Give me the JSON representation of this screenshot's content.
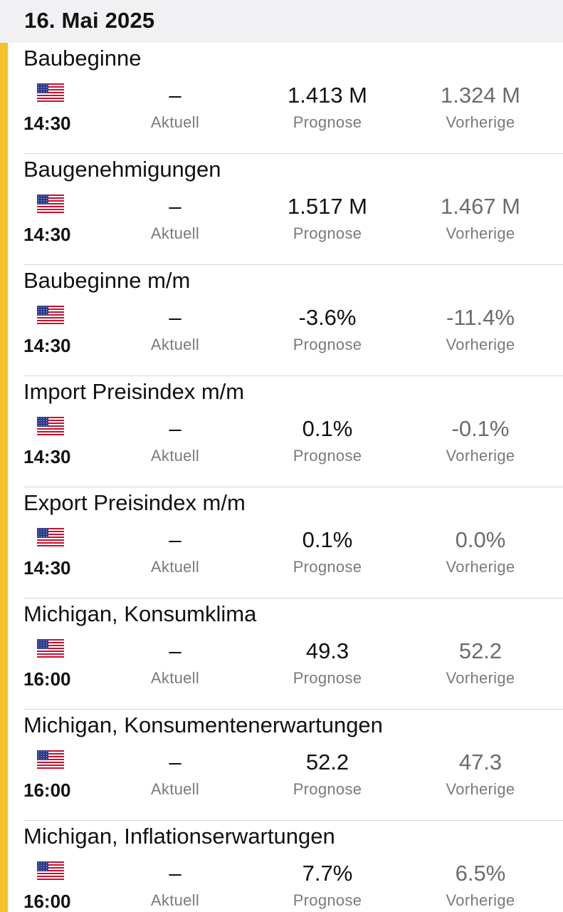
{
  "header": {
    "date": "16. Mai 2025"
  },
  "labels": {
    "actual": "Aktuell",
    "forecast": "Prognose",
    "previous": "Vorherige"
  },
  "colors": {
    "accent": "#f4c12a",
    "header_bg": "#f1f1f4",
    "label_gray": "#7a7a7e"
  },
  "events": [
    {
      "title": "Baubeginne",
      "country_flag": "us-flag-icon",
      "time": "14:30",
      "actual": "–",
      "forecast": "1.413 M",
      "previous": "1.324 M"
    },
    {
      "title": "Baugenehmigungen",
      "country_flag": "us-flag-icon",
      "time": "14:30",
      "actual": "–",
      "forecast": "1.517 M",
      "previous": "1.467 M"
    },
    {
      "title": "Baubeginne m/m",
      "country_flag": "us-flag-icon",
      "time": "14:30",
      "actual": "–",
      "forecast": "-3.6%",
      "previous": "-11.4%"
    },
    {
      "title": "Import Preisindex m/m",
      "country_flag": "us-flag-icon",
      "time": "14:30",
      "actual": "–",
      "forecast": "0.1%",
      "previous": "-0.1%"
    },
    {
      "title": "Export Preisindex m/m",
      "country_flag": "us-flag-icon",
      "time": "14:30",
      "actual": "–",
      "forecast": "0.1%",
      "previous": "0.0%"
    },
    {
      "title": "Michigan, Konsumklima",
      "country_flag": "us-flag-icon",
      "time": "16:00",
      "actual": "–",
      "forecast": "49.3",
      "previous": "52.2"
    },
    {
      "title": "Michigan, Konsumentenerwartungen",
      "country_flag": "us-flag-icon",
      "time": "16:00",
      "actual": "–",
      "forecast": "52.2",
      "previous": "47.3"
    },
    {
      "title": "Michigan, Inflationserwartungen",
      "country_flag": "us-flag-icon",
      "time": "16:00",
      "actual": "–",
      "forecast": "7.7%",
      "previous": "6.5%"
    }
  ]
}
